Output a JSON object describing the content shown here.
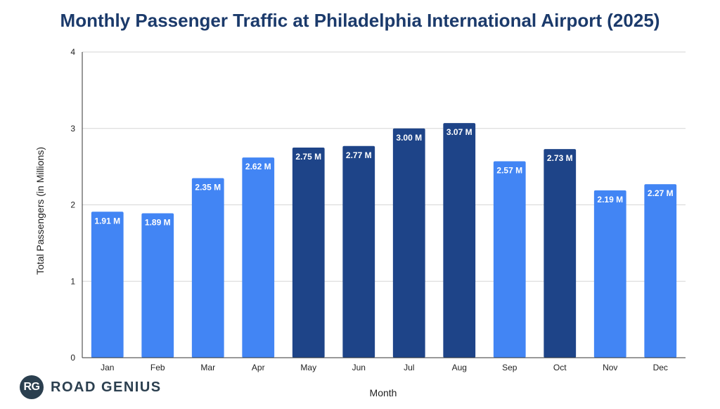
{
  "chart_data": {
    "type": "bar",
    "title": "Monthly Passenger Traffic at Philadelphia International Airport (2025)",
    "xlabel": "Month",
    "ylabel": "Total Passengers (in Millions)",
    "ylim": [
      0,
      4
    ],
    "yticks": [
      0,
      1,
      2,
      3,
      4
    ],
    "grid": true,
    "categories": [
      "Jan",
      "Feb",
      "Mar",
      "Apr",
      "May",
      "Jun",
      "Jul",
      "Aug",
      "Sep",
      "Oct",
      "Nov",
      "Dec"
    ],
    "values": [
      1.91,
      1.89,
      2.35,
      2.62,
      2.75,
      2.77,
      3.0,
      3.07,
      2.57,
      2.73,
      2.19,
      2.27
    ],
    "data_labels": [
      "1.91 M",
      "1.89 M",
      "2.35 M",
      "2.62 M",
      "2.75 M",
      "2.77 M",
      "3.00 M",
      "3.07 M",
      "2.57 M",
      "2.73 M",
      "2.19 M",
      "2.27 M"
    ],
    "highlighted": [
      false,
      false,
      false,
      false,
      true,
      true,
      true,
      true,
      false,
      true,
      false,
      false
    ]
  },
  "colors": {
    "title": "#1b3a6b",
    "bar": "#4285f4",
    "bar_highlight": "#1e4488",
    "grid": "#d6d6d6",
    "axis": "#333333",
    "logo": "#2b3f4f"
  },
  "logo": {
    "badge": "RG",
    "text": "ROAD GENIUS"
  }
}
